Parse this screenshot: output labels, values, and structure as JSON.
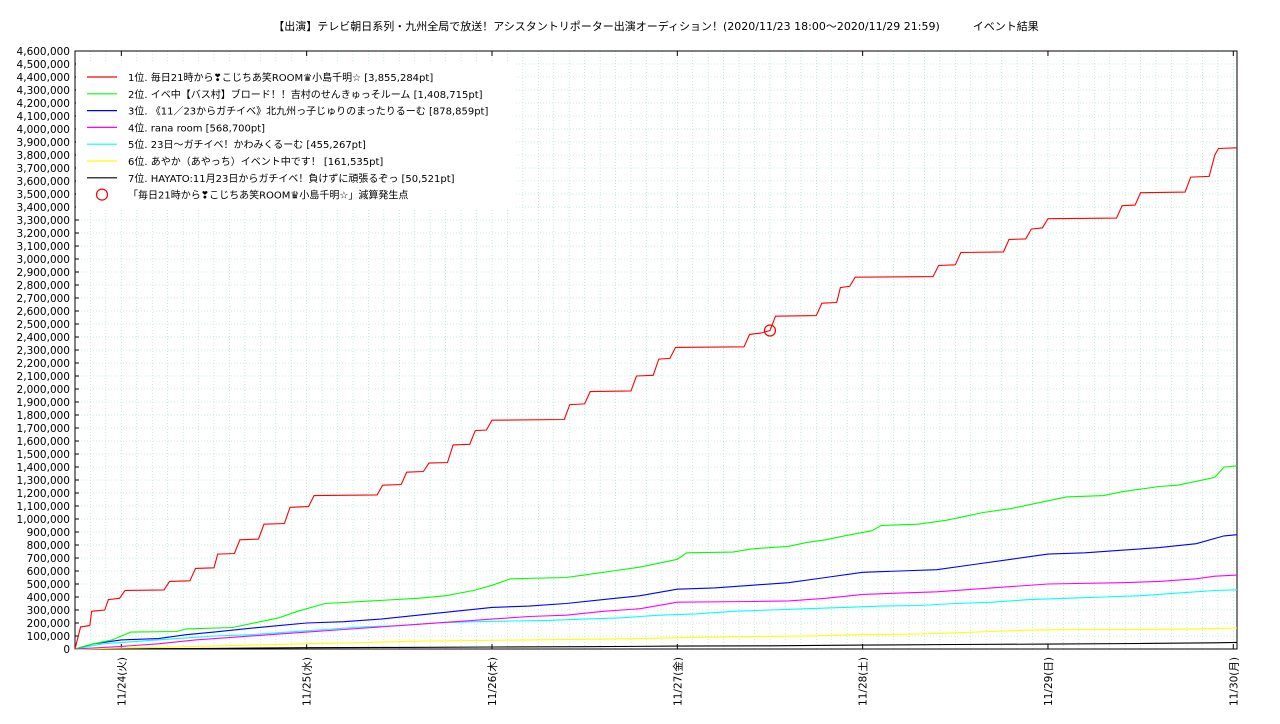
{
  "chart_data": {
    "type": "line",
    "title": "【出演】テレビ朝日系列・九州全局で放送！アシスタントリポーター出演オーディション！(2020/11/23 18:00～2020/11/29 21:59)　　　イベント結果",
    "x_tick_labels": [
      "11/24(火)",
      "11/25(水)",
      "11/26(木)",
      "11/27(金)",
      "11/28(土)",
      "11/29(日)",
      "11/30(月)"
    ],
    "x_ticks_days": [
      1,
      2,
      3,
      4,
      5,
      6,
      7
    ],
    "xlim_days": [
      0.75,
      7.02
    ],
    "ylim": [
      0,
      4600000
    ],
    "y_tick_step": 100000,
    "grid": true,
    "legend_position": "top-left",
    "series": [
      {
        "name": "1位. 毎日21時から❣こじちあ笑ROOM♛小島千明☆ [3,855,284pt]",
        "color": "#ff0000",
        "points": [
          [
            0.75,
            0
          ],
          [
            0.78,
            170000
          ],
          [
            0.83,
            180000
          ],
          [
            0.84,
            290000
          ],
          [
            0.91,
            300000
          ],
          [
            0.93,
            380000
          ],
          [
            0.99,
            390000
          ],
          [
            1.02,
            450000
          ],
          [
            1.23,
            455000
          ],
          [
            1.26,
            520000
          ],
          [
            1.37,
            525000
          ],
          [
            1.4,
            620000
          ],
          [
            1.5,
            625000
          ],
          [
            1.52,
            730000
          ],
          [
            1.61,
            735000
          ],
          [
            1.64,
            840000
          ],
          [
            1.74,
            845000
          ],
          [
            1.77,
            960000
          ],
          [
            1.88,
            965000
          ],
          [
            1.91,
            1090000
          ],
          [
            2.01,
            1095000
          ],
          [
            2.04,
            1180000
          ],
          [
            2.38,
            1185000
          ],
          [
            2.41,
            1260000
          ],
          [
            2.51,
            1265000
          ],
          [
            2.54,
            1360000
          ],
          [
            2.63,
            1365000
          ],
          [
            2.66,
            1430000
          ],
          [
            2.76,
            1435000
          ],
          [
            2.79,
            1570000
          ],
          [
            2.88,
            1575000
          ],
          [
            2.91,
            1680000
          ],
          [
            2.97,
            1685000
          ],
          [
            3.0,
            1760000
          ],
          [
            3.39,
            1765000
          ],
          [
            3.42,
            1880000
          ],
          [
            3.5,
            1885000
          ],
          [
            3.53,
            1980000
          ],
          [
            3.75,
            1985000
          ],
          [
            3.78,
            2100000
          ],
          [
            3.87,
            2105000
          ],
          [
            3.9,
            2230000
          ],
          [
            3.96,
            2235000
          ],
          [
            3.99,
            2320000
          ],
          [
            4.36,
            2325000
          ],
          [
            4.39,
            2420000
          ],
          [
            4.45,
            2430000
          ],
          [
            4.5,
            2450000
          ],
          [
            4.53,
            2560000
          ],
          [
            4.75,
            2565000
          ],
          [
            4.78,
            2660000
          ],
          [
            4.86,
            2665000
          ],
          [
            4.88,
            2780000
          ],
          [
            4.93,
            2790000
          ],
          [
            4.96,
            2860000
          ],
          [
            5.38,
            2865000
          ],
          [
            5.41,
            2950000
          ],
          [
            5.5,
            2955000
          ],
          [
            5.53,
            3050000
          ],
          [
            5.76,
            3055000
          ],
          [
            5.79,
            3150000
          ],
          [
            5.88,
            3155000
          ],
          [
            5.91,
            3230000
          ],
          [
            5.97,
            3240000
          ],
          [
            6.0,
            3310000
          ],
          [
            6.37,
            3315000
          ],
          [
            6.4,
            3410000
          ],
          [
            6.47,
            3415000
          ],
          [
            6.5,
            3510000
          ],
          [
            6.74,
            3515000
          ],
          [
            6.77,
            3630000
          ],
          [
            6.87,
            3635000
          ],
          [
            6.9,
            3800000
          ],
          [
            6.92,
            3850000
          ],
          [
            7.02,
            3855284
          ]
        ]
      },
      {
        "name": "2位. イベ中【バス村】ブロード！！吉村のせんきゅっそルーム [1,408,715pt]",
        "color": "#00ff00",
        "points": [
          [
            0.75,
            0
          ],
          [
            0.8,
            20000
          ],
          [
            0.85,
            40000
          ],
          [
            0.95,
            70000
          ],
          [
            1.05,
            130000
          ],
          [
            1.3,
            135000
          ],
          [
            1.35,
            155000
          ],
          [
            1.6,
            165000
          ],
          [
            1.75,
            210000
          ],
          [
            1.85,
            240000
          ],
          [
            1.95,
            290000
          ],
          [
            2.1,
            350000
          ],
          [
            2.35,
            370000
          ],
          [
            2.6,
            390000
          ],
          [
            2.75,
            410000
          ],
          [
            2.9,
            450000
          ],
          [
            3.0,
            490000
          ],
          [
            3.1,
            540000
          ],
          [
            3.4,
            550000
          ],
          [
            3.5,
            570000
          ],
          [
            3.65,
            600000
          ],
          [
            3.8,
            630000
          ],
          [
            3.9,
            660000
          ],
          [
            4.0,
            690000
          ],
          [
            4.05,
            740000
          ],
          [
            4.3,
            745000
          ],
          [
            4.4,
            770000
          ],
          [
            4.6,
            790000
          ],
          [
            4.7,
            820000
          ],
          [
            4.8,
            840000
          ],
          [
            4.9,
            870000
          ],
          [
            5.05,
            910000
          ],
          [
            5.1,
            950000
          ],
          [
            5.3,
            960000
          ],
          [
            5.45,
            990000
          ],
          [
            5.55,
            1020000
          ],
          [
            5.65,
            1050000
          ],
          [
            5.8,
            1080000
          ],
          [
            5.9,
            1110000
          ],
          [
            6.0,
            1140000
          ],
          [
            6.1,
            1170000
          ],
          [
            6.3,
            1180000
          ],
          [
            6.4,
            1210000
          ],
          [
            6.5,
            1230000
          ],
          [
            6.6,
            1250000
          ],
          [
            6.7,
            1260000
          ],
          [
            6.8,
            1290000
          ],
          [
            6.9,
            1320000
          ],
          [
            6.95,
            1400000
          ],
          [
            7.02,
            1408715
          ]
        ]
      },
      {
        "name": "3位. 《11／23からガチイベ》北九州っ子じゅりのまったりるーむ [878,859pt]",
        "color": "#0000ff",
        "points": [
          [
            0.75,
            0
          ],
          [
            0.85,
            40000
          ],
          [
            1.0,
            70000
          ],
          [
            1.2,
            80000
          ],
          [
            1.35,
            110000
          ],
          [
            1.5,
            130000
          ],
          [
            1.7,
            160000
          ],
          [
            1.85,
            180000
          ],
          [
            2.0,
            200000
          ],
          [
            2.2,
            210000
          ],
          [
            2.4,
            230000
          ],
          [
            2.6,
            260000
          ],
          [
            2.8,
            290000
          ],
          [
            3.0,
            320000
          ],
          [
            3.2,
            330000
          ],
          [
            3.4,
            350000
          ],
          [
            3.6,
            380000
          ],
          [
            3.8,
            410000
          ],
          [
            4.0,
            460000
          ],
          [
            4.2,
            470000
          ],
          [
            4.4,
            490000
          ],
          [
            4.6,
            510000
          ],
          [
            4.8,
            550000
          ],
          [
            5.0,
            590000
          ],
          [
            5.2,
            600000
          ],
          [
            5.4,
            610000
          ],
          [
            5.6,
            650000
          ],
          [
            5.8,
            690000
          ],
          [
            6.0,
            730000
          ],
          [
            6.2,
            740000
          ],
          [
            6.4,
            760000
          ],
          [
            6.6,
            780000
          ],
          [
            6.8,
            810000
          ],
          [
            6.95,
            870000
          ],
          [
            7.02,
            878859
          ]
        ]
      },
      {
        "name": "4位. rana room [568,700pt]",
        "color": "#ff00ff",
        "points": [
          [
            0.75,
            0
          ],
          [
            1.0,
            20000
          ],
          [
            1.2,
            40000
          ],
          [
            1.4,
            70000
          ],
          [
            1.6,
            90000
          ],
          [
            1.8,
            110000
          ],
          [
            2.0,
            130000
          ],
          [
            2.2,
            150000
          ],
          [
            2.4,
            170000
          ],
          [
            2.6,
            190000
          ],
          [
            2.8,
            210000
          ],
          [
            3.0,
            230000
          ],
          [
            3.2,
            250000
          ],
          [
            3.4,
            260000
          ],
          [
            3.6,
            290000
          ],
          [
            3.8,
            310000
          ],
          [
            4.0,
            360000
          ],
          [
            4.4,
            365000
          ],
          [
            4.6,
            370000
          ],
          [
            4.8,
            390000
          ],
          [
            5.0,
            420000
          ],
          [
            5.2,
            430000
          ],
          [
            5.4,
            440000
          ],
          [
            5.6,
            460000
          ],
          [
            5.8,
            480000
          ],
          [
            6.0,
            500000
          ],
          [
            6.4,
            510000
          ],
          [
            6.6,
            520000
          ],
          [
            6.8,
            540000
          ],
          [
            6.9,
            560000
          ],
          [
            7.02,
            568700
          ]
        ]
      },
      {
        "name": "5位. 23日〜ガチイベ！かわみくるーむ [455,267pt]",
        "color": "#00ffff",
        "points": [
          [
            0.75,
            0
          ],
          [
            0.9,
            40000
          ],
          [
            1.1,
            60000
          ],
          [
            1.3,
            80000
          ],
          [
            1.5,
            100000
          ],
          [
            1.7,
            110000
          ],
          [
            1.9,
            130000
          ],
          [
            2.1,
            150000
          ],
          [
            2.3,
            170000
          ],
          [
            2.5,
            180000
          ],
          [
            2.7,
            200000
          ],
          [
            2.9,
            210000
          ],
          [
            3.1,
            215000
          ],
          [
            3.3,
            220000
          ],
          [
            3.5,
            230000
          ],
          [
            3.7,
            240000
          ],
          [
            3.9,
            260000
          ],
          [
            4.1,
            270000
          ],
          [
            4.3,
            290000
          ],
          [
            4.5,
            300000
          ],
          [
            4.7,
            310000
          ],
          [
            4.9,
            320000
          ],
          [
            5.1,
            330000
          ],
          [
            5.3,
            335000
          ],
          [
            5.5,
            350000
          ],
          [
            5.7,
            360000
          ],
          [
            5.9,
            380000
          ],
          [
            6.1,
            390000
          ],
          [
            6.3,
            400000
          ],
          [
            6.5,
            410000
          ],
          [
            6.7,
            430000
          ],
          [
            6.9,
            450000
          ],
          [
            7.02,
            455267
          ]
        ]
      },
      {
        "name": "6位. あやか（あやっち）イベント中です！ [161,535pt]",
        "color": "#ffff00",
        "points": [
          [
            0.75,
            0
          ],
          [
            1.1,
            10000
          ],
          [
            1.4,
            20000
          ],
          [
            1.7,
            30000
          ],
          [
            2.0,
            40000
          ],
          [
            2.3,
            50000
          ],
          [
            2.6,
            60000
          ],
          [
            2.9,
            65000
          ],
          [
            3.2,
            70000
          ],
          [
            3.5,
            75000
          ],
          [
            3.8,
            80000
          ],
          [
            4.1,
            90000
          ],
          [
            4.4,
            95000
          ],
          [
            4.7,
            100000
          ],
          [
            5.0,
            110000
          ],
          [
            5.3,
            115000
          ],
          [
            5.5,
            125000
          ],
          [
            5.7,
            135000
          ],
          [
            5.9,
            145000
          ],
          [
            6.2,
            150000
          ],
          [
            6.5,
            150000
          ],
          [
            6.8,
            155000
          ],
          [
            7.02,
            161535
          ]
        ]
      },
      {
        "name": "7位. HAYATO:11月23日からガチイベ！負けずに頑張るぞっ [50,521pt]",
        "color": "#000000",
        "points": [
          [
            0.75,
            0
          ],
          [
            1.5,
            5000
          ],
          [
            2.0,
            10000
          ],
          [
            2.5,
            12000
          ],
          [
            3.0,
            15000
          ],
          [
            3.5,
            18000
          ],
          [
            4.0,
            22000
          ],
          [
            4.5,
            25000
          ],
          [
            5.0,
            30000
          ],
          [
            5.5,
            35000
          ],
          [
            6.0,
            38000
          ],
          [
            6.5,
            42000
          ],
          [
            6.9,
            48000
          ],
          [
            7.02,
            50521
          ]
        ]
      }
    ],
    "annotation": {
      "label": "「毎日21時から❣こじちあ笑ROOM♛小島千明☆」減算発生点",
      "x": 4.5,
      "y": 2450000,
      "color": "#ff0000"
    }
  }
}
